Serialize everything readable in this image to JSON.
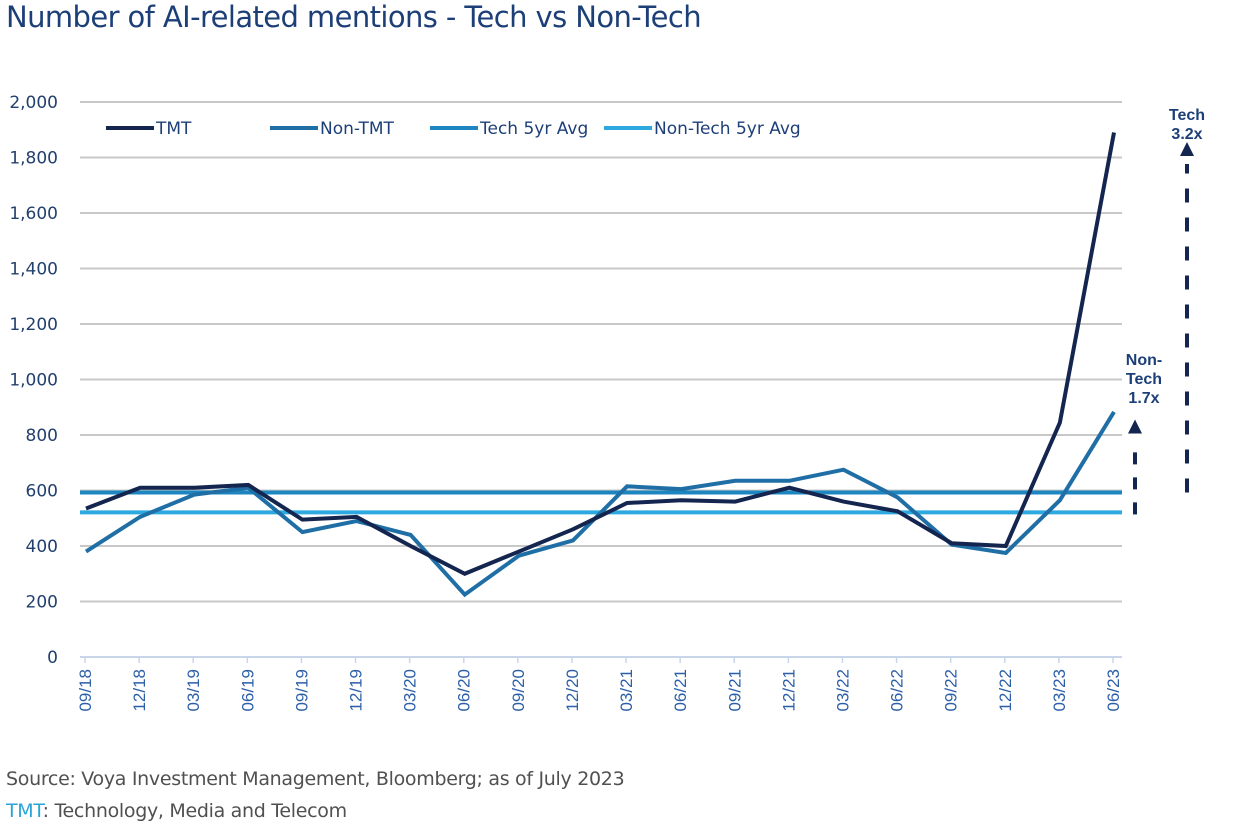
{
  "header": {
    "title": "Number of AI-related mentions - Tech vs Non-Tech"
  },
  "footer": {
    "source": "Source: Voya Investment Management, Bloomberg; as of July 2023",
    "abbr": "TMT",
    "abbr_def": ": Technology, Media and Telecom"
  },
  "chart_data": {
    "type": "line",
    "title": "Number of AI-related mentions - Tech vs Non-Tech",
    "xlabel": "",
    "ylabel": "",
    "ylim": [
      0,
      2000
    ],
    "yticks": [
      0,
      200,
      400,
      600,
      800,
      1000,
      1200,
      1400,
      1600,
      1800,
      2000
    ],
    "ytick_labels": [
      "0",
      "200",
      "400",
      "600",
      "800",
      "1,000",
      "1,200",
      "1,400",
      "1,600",
      "1,800",
      "2,000"
    ],
    "grid": "horizontal",
    "legend_position": "top-left",
    "categories": [
      "09/18",
      "12/18",
      "03/19",
      "06/19",
      "09/19",
      "12/19",
      "03/20",
      "06/20",
      "09/20",
      "12/20",
      "03/21",
      "06/21",
      "09/21",
      "12/21",
      "03/22",
      "06/22",
      "09/22",
      "12/22",
      "03/23",
      "06/23"
    ],
    "series": [
      {
        "name": "TMT",
        "color": "#14264f",
        "values": [
          535,
          610,
          610,
          620,
          495,
          505,
          400,
          300,
          380,
          460,
          555,
          565,
          560,
          610,
          560,
          525,
          410,
          400,
          845,
          1890
        ]
      },
      {
        "name": "Non-TMT",
        "color": "#1f6fa6",
        "values": [
          380,
          505,
          585,
          610,
          450,
          490,
          440,
          225,
          365,
          420,
          615,
          605,
          635,
          635,
          675,
          575,
          405,
          375,
          565,
          883
        ]
      },
      {
        "name": "Tech 5yr Avg",
        "color": "#1d86c0",
        "constant": true,
        "values": [
          593,
          593,
          593,
          593,
          593,
          593,
          593,
          593,
          593,
          593,
          593,
          593,
          593,
          593,
          593,
          593,
          593,
          593,
          593,
          593
        ]
      },
      {
        "name": "Non-Tech 5yr Avg",
        "color": "#2ea9df",
        "constant": true,
        "values": [
          521,
          521,
          521,
          521,
          521,
          521,
          521,
          521,
          521,
          521,
          521,
          521,
          521,
          521,
          521,
          521,
          521,
          521,
          521,
          521
        ]
      }
    ],
    "annotations": [
      {
        "name": "tech-multiple",
        "lines": [
          "Tech",
          "3.2x"
        ],
        "arrow_from": 593,
        "arrow_to": 1820
      },
      {
        "name": "non-tech-multiple",
        "lines": [
          "Non-",
          "Tech",
          "1.7x"
        ],
        "arrow_from": 521,
        "arrow_to": 820
      }
    ]
  }
}
